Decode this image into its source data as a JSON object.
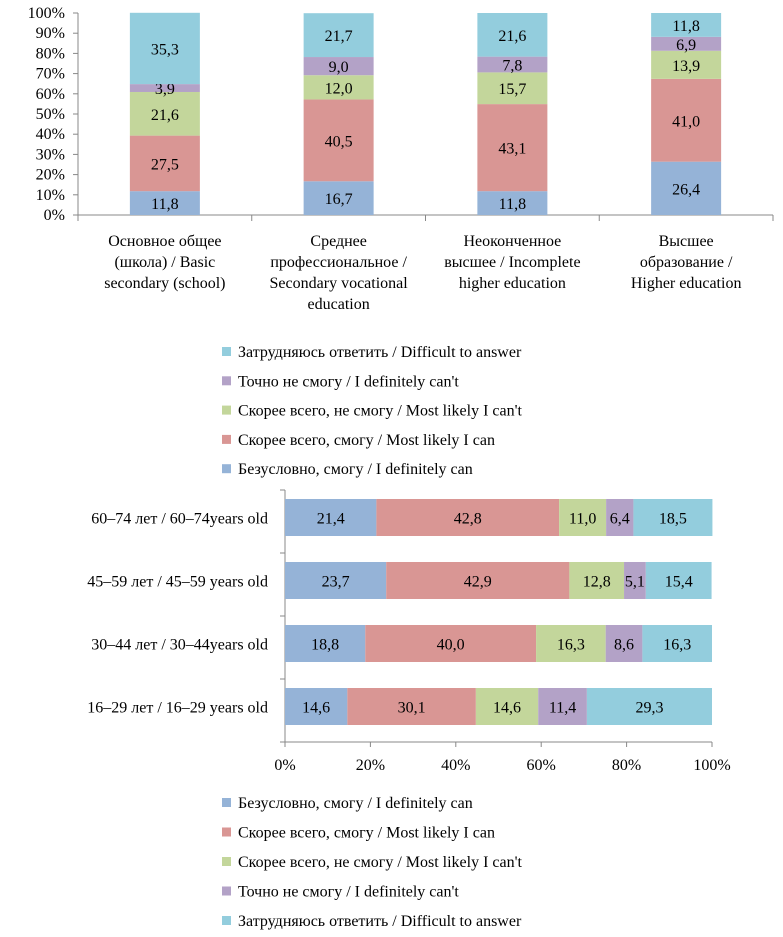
{
  "colors": {
    "definitely_can": "#95B3D7",
    "most_likely_can": "#D99694",
    "most_likely_cant": "#C3D69B",
    "definitely_cant": "#B3A2C7",
    "difficult": "#93CDDD"
  },
  "chart_data": [
    {
      "type": "bar",
      "orientation": "vertical",
      "stacked": true,
      "ylim": [
        0,
        100
      ],
      "yticks": [
        "0%",
        "10%",
        "20%",
        "30%",
        "40%",
        "50%",
        "60%",
        "70%",
        "80%",
        "90%",
        "100%"
      ],
      "categories": [
        [
          "Основное общее",
          "(школа) / Basic",
          "secondary (school)"
        ],
        [
          "Среднее",
          "профессиональное /",
          "Secondary vocational",
          "education"
        ],
        [
          "Неоконченное",
          "высшее / Incomplete",
          "higher education"
        ],
        [
          "Высшее",
          "образование /",
          "Higher education"
        ]
      ],
      "series": [
        {
          "name": "Безусловно, смогу / I definitely can",
          "color_key": "definitely_can",
          "values": [
            11.8,
            16.7,
            11.8,
            26.4
          ],
          "labels": [
            "11,8",
            "16,7",
            "11,8",
            "26,4"
          ]
        },
        {
          "name": "Скорее всего, смогу  / Most likely I can",
          "color_key": "most_likely_can",
          "values": [
            27.5,
            40.5,
            43.1,
            41.0
          ],
          "labels": [
            "27,5",
            "40,5",
            "43,1",
            "41,0"
          ]
        },
        {
          "name": "Скорее всего, не смогу / Most likely I can't",
          "color_key": "most_likely_cant",
          "values": [
            21.6,
            12.0,
            15.7,
            13.9
          ],
          "labels": [
            "21,6",
            "12,0",
            "15,7",
            "13,9"
          ]
        },
        {
          "name": "Точно не смогу / I definitely can't",
          "color_key": "definitely_cant",
          "values": [
            3.9,
            9.0,
            7.8,
            6.9
          ],
          "labels": [
            "3,9",
            "9,0",
            "7,8",
            "6,9"
          ]
        },
        {
          "name": "Затрудняюсь ответить / Difficult to answer",
          "color_key": "difficult",
          "values": [
            35.3,
            21.7,
            21.6,
            11.8
          ],
          "labels": [
            "35,3",
            "21,7",
            "21,6",
            "11,8"
          ]
        }
      ],
      "legend_order": "reversed",
      "legend_placement": "bottom"
    },
    {
      "type": "bar",
      "orientation": "horizontal",
      "stacked": true,
      "xlim": [
        0,
        100
      ],
      "xticks": [
        "0%",
        "20%",
        "40%",
        "60%",
        "80%",
        "100%"
      ],
      "categories": [
        "60–74 лет / 60–74years old",
        "45–59 лет / 45–59 years old",
        "30–44 лет / 30–44years old",
        "16–29 лет / 16–29 years old"
      ],
      "series": [
        {
          "name": "Безусловно, смогу / I definitely can",
          "color_key": "definitely_can",
          "values": [
            21.4,
            23.7,
            18.8,
            14.6
          ],
          "labels": [
            "21,4",
            "23,7",
            "18,8",
            "14,6"
          ]
        },
        {
          "name": "Скорее всего, смогу  / Most likely I can",
          "color_key": "most_likely_can",
          "values": [
            42.8,
            42.9,
            40.0,
            30.1
          ],
          "labels": [
            "42,8",
            "42,9",
            "40,0",
            "30,1"
          ]
        },
        {
          "name": "Скорее всего, не смогу / Most likely I can't",
          "color_key": "most_likely_cant",
          "values": [
            11.0,
            12.8,
            16.3,
            14.6
          ],
          "labels": [
            "11,0",
            "12,8",
            "16,3",
            "14,6"
          ]
        },
        {
          "name": "Точно не смогу / I definitely can't",
          "color_key": "definitely_cant",
          "values": [
            6.4,
            5.1,
            8.6,
            11.4
          ],
          "labels": [
            "6,4",
            "5,1",
            "8,6",
            "11,4"
          ]
        },
        {
          "name": "Затрудняюсь ответить / Difficult to answer",
          "color_key": "difficult",
          "values": [
            18.5,
            15.4,
            16.3,
            29.3
          ],
          "labels": [
            "18,5",
            "15,4",
            "16,3",
            "29,3"
          ]
        }
      ],
      "legend_order": "normal",
      "legend_placement": "bottom"
    }
  ]
}
